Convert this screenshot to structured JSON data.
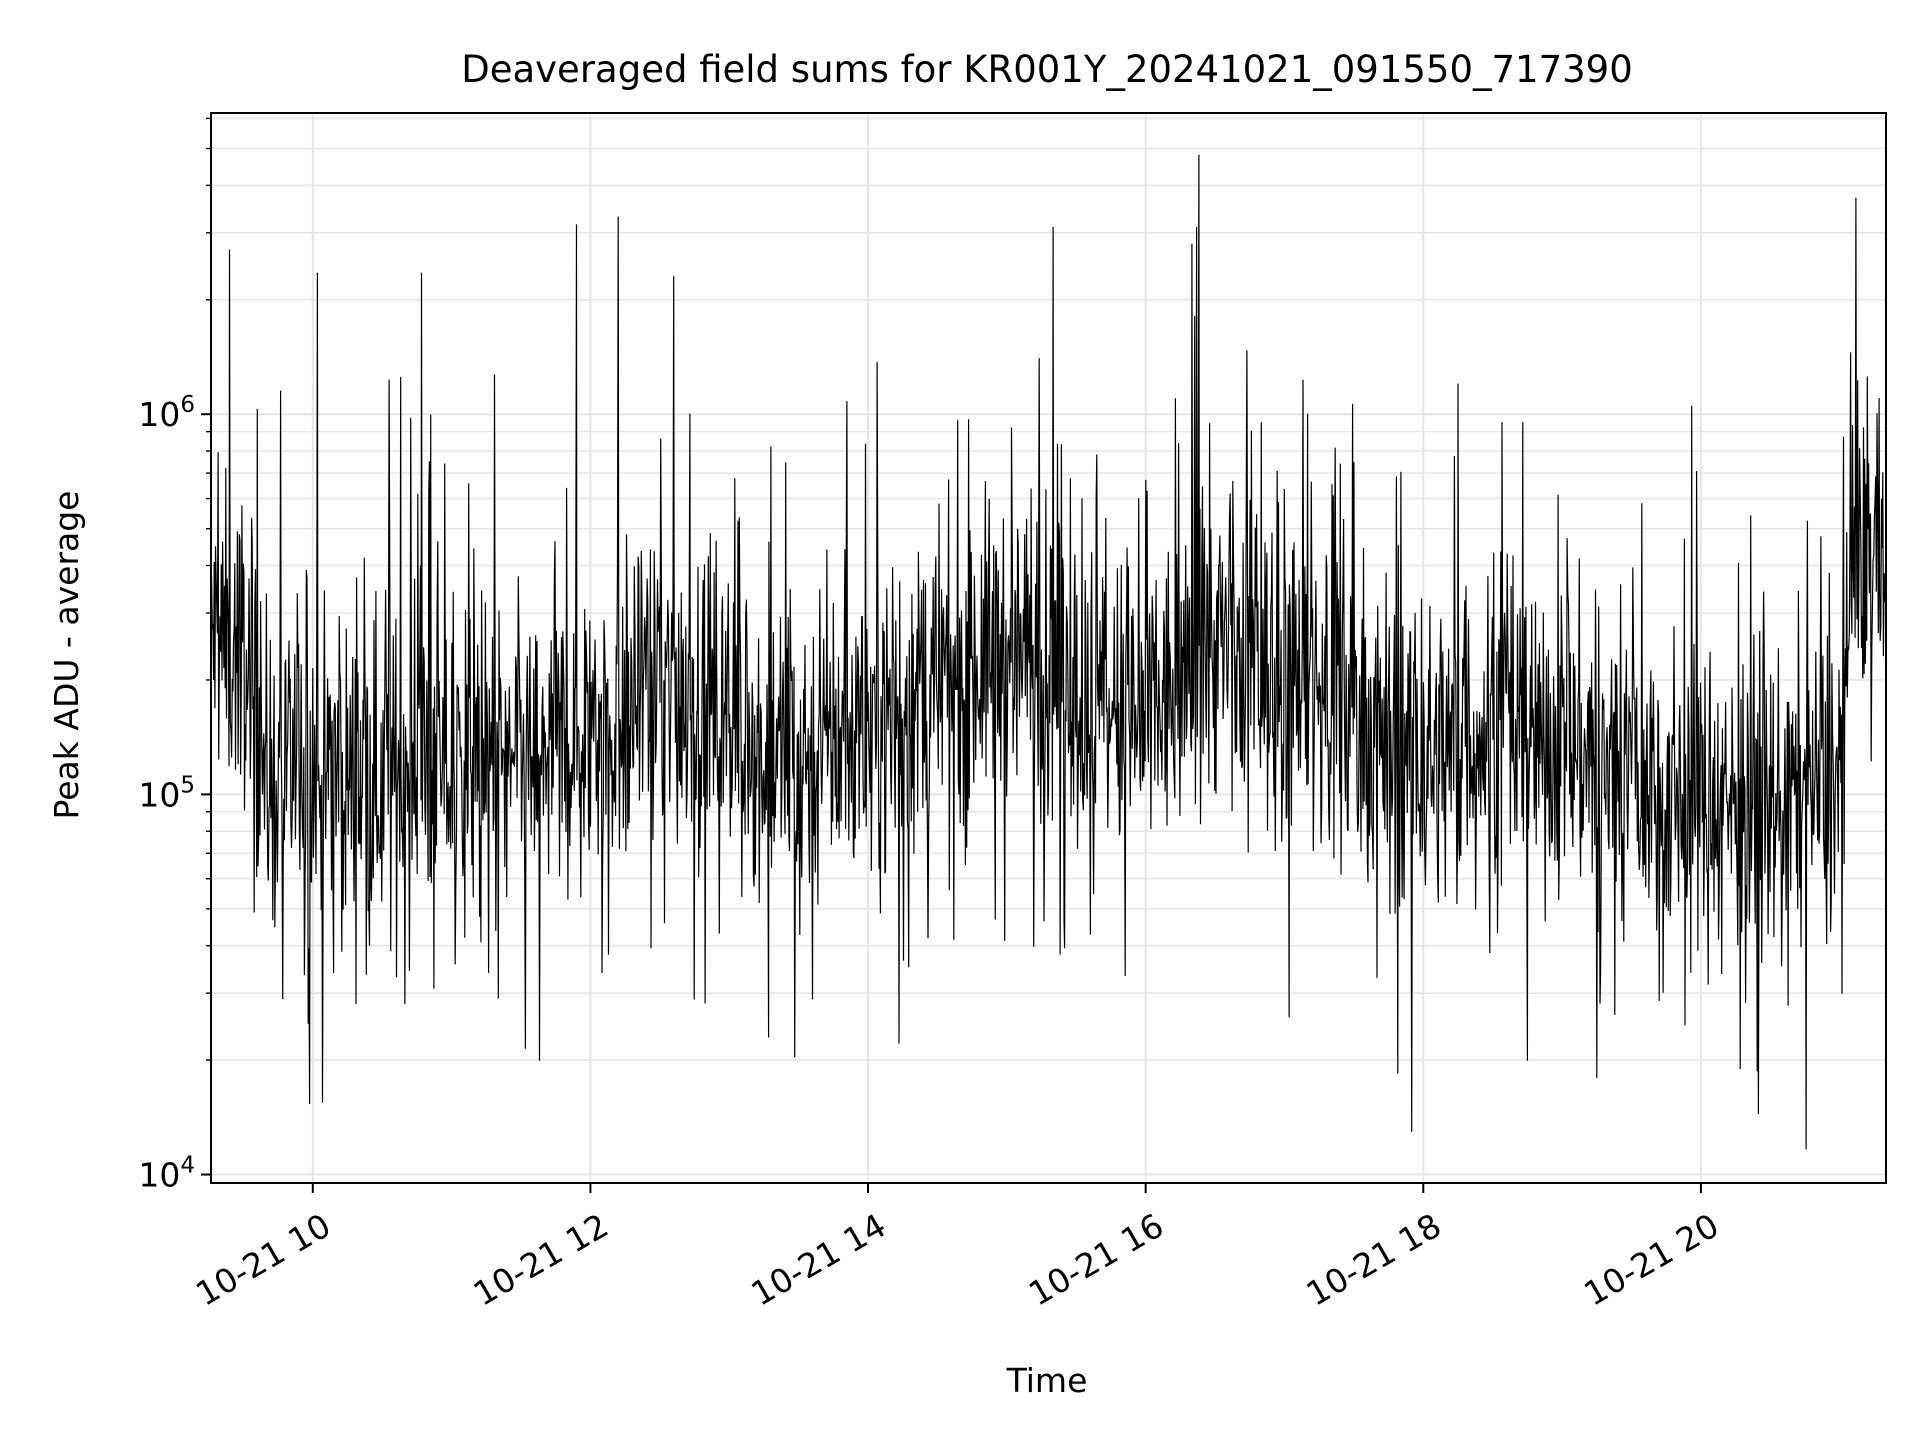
{
  "chart_data": {
    "type": "line",
    "title": "Deaveraged field sums for KR001Y_20241021_091550_717390",
    "xlabel": "Time",
    "ylabel": "Peak ADU - average",
    "x_type": "datetime",
    "xlim": [
      "2024-10-21T09:16",
      "2024-10-21T21:20"
    ],
    "ylim": [
      9500,
      6200000
    ],
    "y_scale": "log",
    "grid": true,
    "x_ticks": [
      {
        "value": "2024-10-21T10:00",
        "label": "10-21 10"
      },
      {
        "value": "2024-10-21T12:00",
        "label": "10-21 12"
      },
      {
        "value": "2024-10-21T14:00",
        "label": "10-21 14"
      },
      {
        "value": "2024-10-21T16:00",
        "label": "10-21 16"
      },
      {
        "value": "2024-10-21T18:00",
        "label": "10-21 18"
      },
      {
        "value": "2024-10-21T20:00",
        "label": "10-21 20"
      }
    ],
    "y_ticks": [
      {
        "value": 10000,
        "base": "10",
        "exp": "4"
      },
      {
        "value": 100000,
        "base": "10",
        "exp": "5"
      },
      {
        "value": 1000000,
        "base": "10",
        "exp": "6"
      }
    ],
    "series": [
      {
        "color": "#000000",
        "baseline": [
          [
            "2024-10-21T09:16",
            260000
          ],
          [
            "2024-10-21T09:30",
            240000
          ],
          [
            "2024-10-21T09:40",
            110000
          ],
          [
            "2024-10-21T10:30",
            110000
          ],
          [
            "2024-10-21T11:30",
            120000
          ],
          [
            "2024-10-21T12:00",
            150000
          ],
          [
            "2024-10-21T12:40",
            190000
          ],
          [
            "2024-10-21T13:30",
            125000
          ],
          [
            "2024-10-21T14:00",
            150000
          ],
          [
            "2024-10-21T14:30",
            190000
          ],
          [
            "2024-10-21T15:00",
            250000
          ],
          [
            "2024-10-21T15:30",
            180000
          ],
          [
            "2024-10-21T16:00",
            150000
          ],
          [
            "2024-10-21T16:30",
            250000
          ],
          [
            "2024-10-21T17:00",
            190000
          ],
          [
            "2024-10-21T17:30",
            170000
          ],
          [
            "2024-10-21T18:00",
            120000
          ],
          [
            "2024-10-21T18:30",
            150000
          ],
          [
            "2024-10-21T19:00",
            140000
          ],
          [
            "2024-10-21T19:30",
            110000
          ],
          [
            "2024-10-21T20:00",
            100000
          ],
          [
            "2024-10-21T20:30",
            95000
          ],
          [
            "2024-10-21T21:00",
            110000
          ],
          [
            "2024-10-21T21:05",
            420000
          ],
          [
            "2024-10-21T21:20",
            500000
          ]
        ],
        "spikes": [
          [
            "2024-10-21T09:24",
            2700000
          ],
          [
            "2024-10-21T09:36",
            1030000
          ],
          [
            "2024-10-21T10:02",
            2350000
          ],
          [
            "2024-10-21T10:33",
            1230000
          ],
          [
            "2024-10-21T10:38",
            1250000
          ],
          [
            "2024-10-21T10:47",
            2350000
          ],
          [
            "2024-10-21T10:57",
            740000
          ],
          [
            "2024-10-21T11:54",
            3150000
          ],
          [
            "2024-10-21T12:12",
            3300000
          ],
          [
            "2024-10-21T12:36",
            2300000
          ],
          [
            "2024-10-21T12:43",
            1000000
          ],
          [
            "2024-10-21T13:18",
            820000
          ],
          [
            "2024-10-21T15:02",
            920000
          ],
          [
            "2024-10-21T15:14",
            1400000
          ],
          [
            "2024-10-21T15:20",
            3100000
          ],
          [
            "2024-10-21T16:20",
            2800000
          ],
          [
            "2024-10-21T16:22",
            3100000
          ],
          [
            "2024-10-21T16:23",
            4800000
          ],
          [
            "2024-10-21T16:50",
            950000
          ],
          [
            "2024-10-21T17:08",
            1230000
          ],
          [
            "2024-10-21T17:10",
            1000000
          ],
          [
            "2024-10-21T18:15",
            1200000
          ],
          [
            "2024-10-21T18:34",
            950000
          ],
          [
            "2024-10-21T18:43",
            950000
          ],
          [
            "2024-10-21T19:56",
            1050000
          ],
          [
            "2024-10-21T21:07",
            3700000
          ],
          [
            "2024-10-21T21:17",
            1100000
          ]
        ],
        "dips": [
          [
            "2024-10-21T09:47",
            29000
          ],
          [
            "2024-10-21T09:58",
            25000
          ],
          [
            "2024-10-21T10:09",
            34000
          ],
          [
            "2024-10-21T11:16",
            34000
          ],
          [
            "2024-10-21T11:38",
            20000
          ],
          [
            "2024-10-21T12:05",
            34000
          ],
          [
            "2024-10-21T13:17",
            23000
          ],
          [
            "2024-10-21T13:36",
            29000
          ],
          [
            "2024-10-21T14:55",
            47000
          ],
          [
            "2024-10-21T15:23",
            38000
          ],
          [
            "2024-10-21T17:02",
            26000
          ],
          [
            "2024-10-21T17:40",
            33000
          ],
          [
            "2024-10-21T17:49",
            18500
          ],
          [
            "2024-10-21T17:55",
            13000
          ],
          [
            "2024-10-21T18:45",
            20000
          ],
          [
            "2024-10-21T19:15",
            18000
          ],
          [
            "2024-10-21T20:17",
            19000
          ],
          [
            "2024-10-21T21:01",
            30000
          ]
        ]
      }
    ]
  }
}
